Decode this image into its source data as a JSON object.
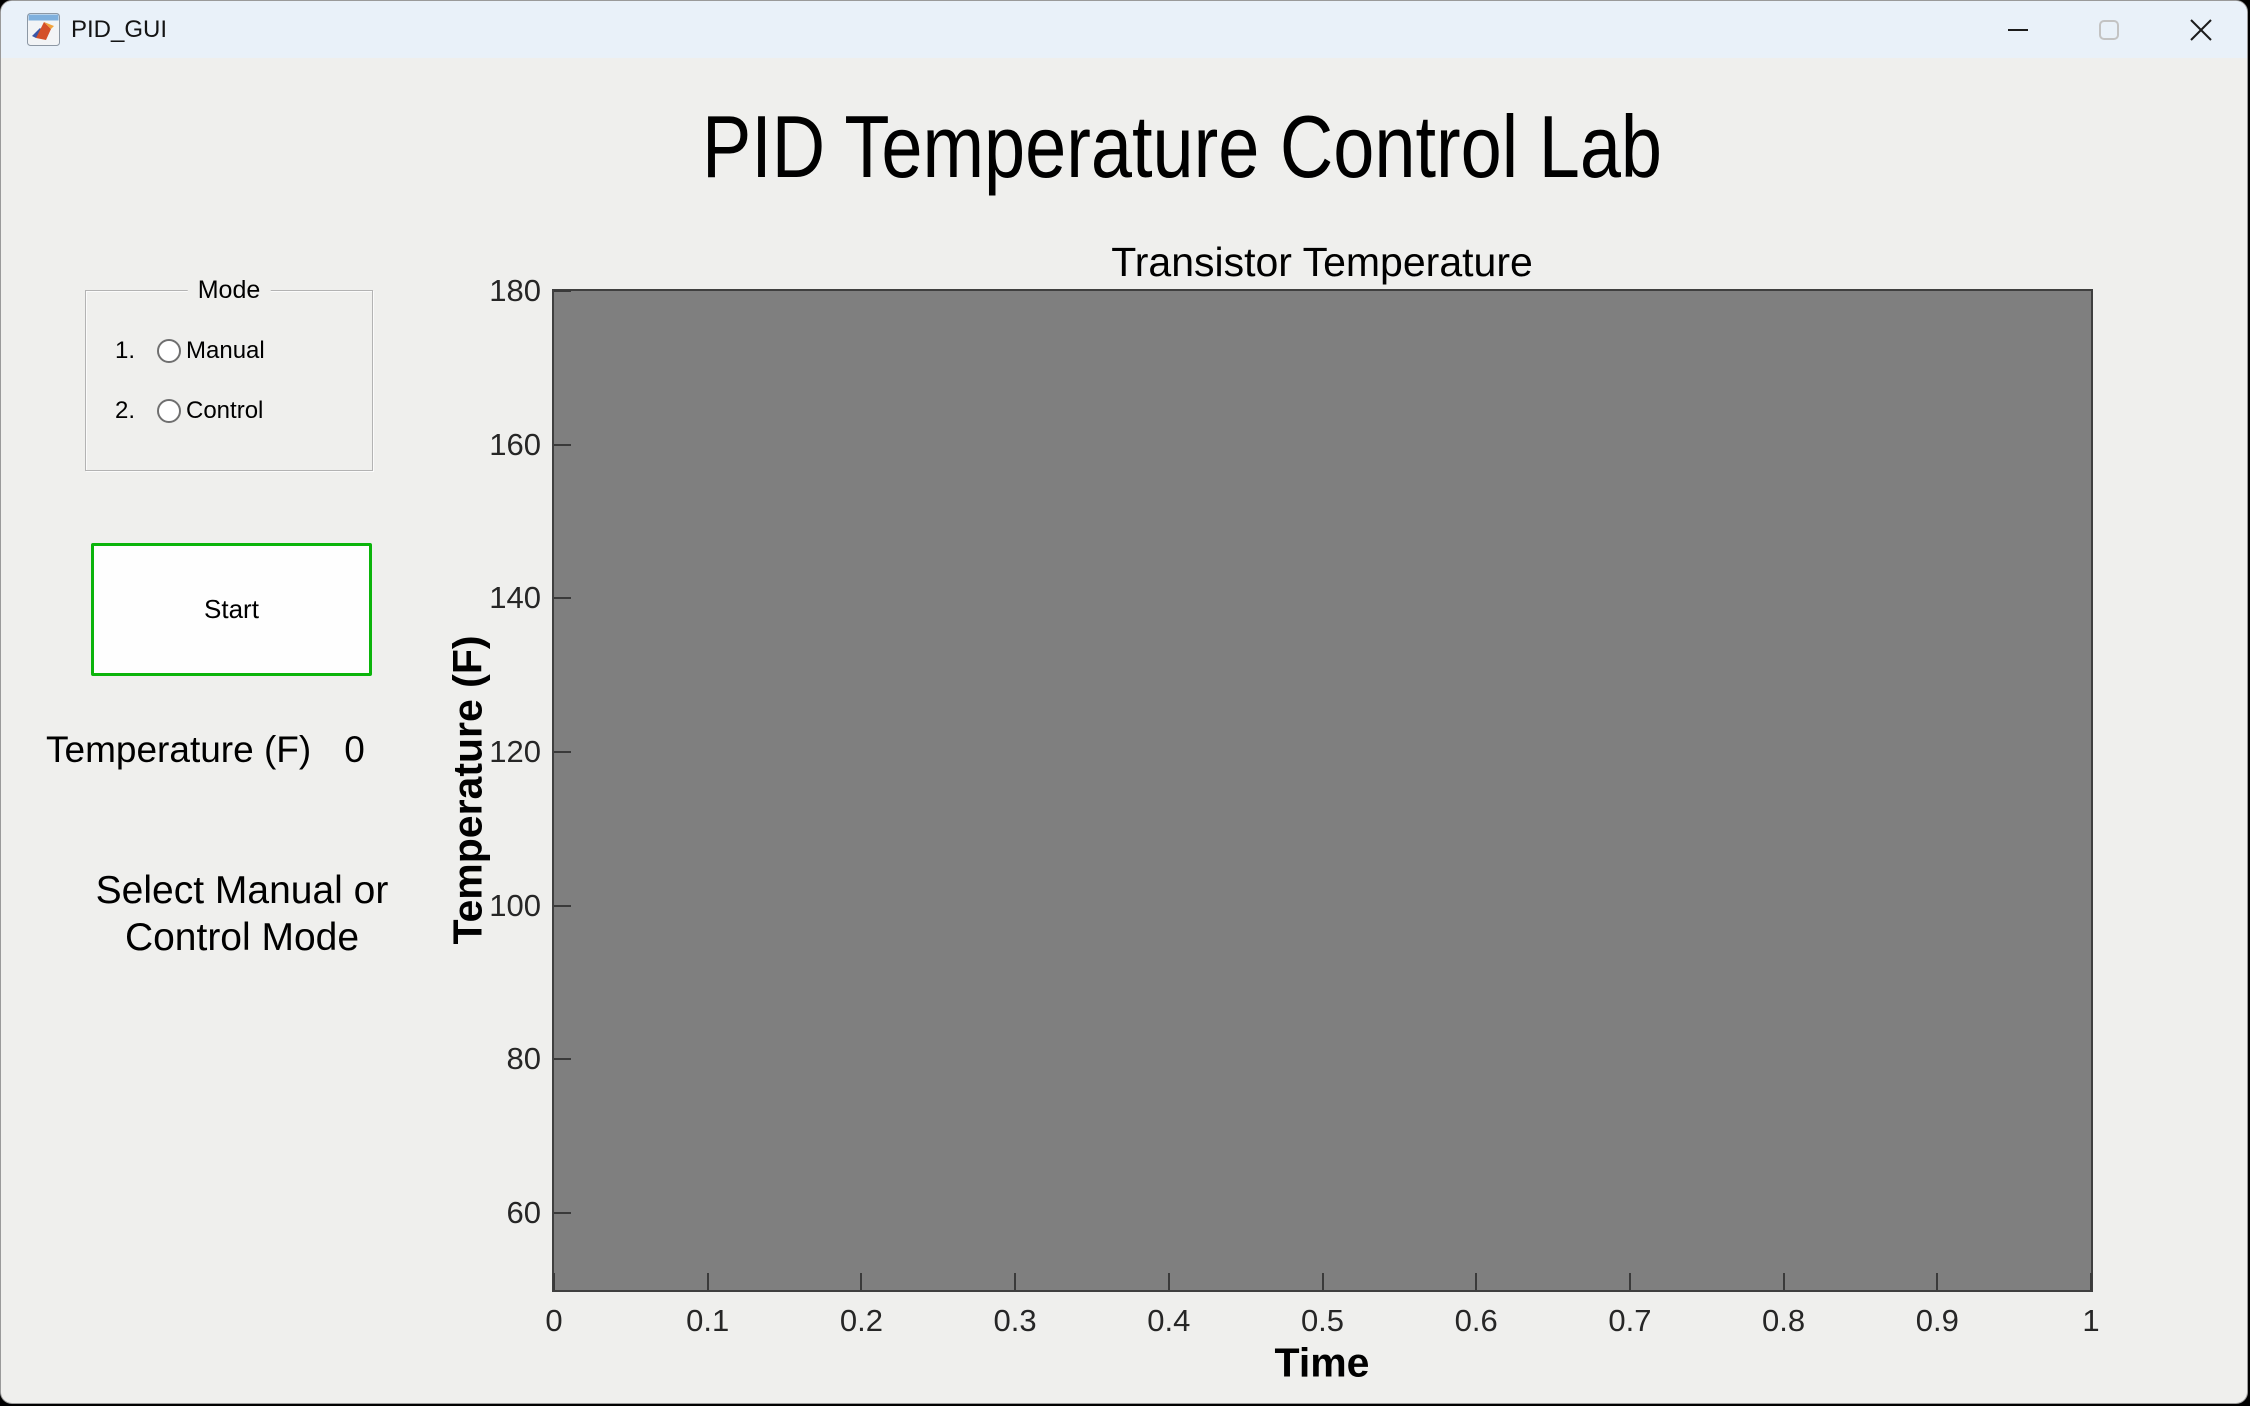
{
  "window": {
    "title": "PID_GUI",
    "controls": {
      "minimize": "minimize",
      "maximize": "maximize",
      "close": "close"
    },
    "titlebar_color": "#e9f1f9",
    "figure_background": "#efefed"
  },
  "header": {
    "title": "PID Temperature Control Lab"
  },
  "mode_panel": {
    "legend": "Mode",
    "options": [
      {
        "index": "1.",
        "label": "Manual",
        "selected": false
      },
      {
        "index": "2.",
        "label": "Control",
        "selected": false
      }
    ]
  },
  "start_button": {
    "label": "Start",
    "border_color": "#0bb40b"
  },
  "temperature_readout": {
    "label": "Temperature (F)",
    "value": "0"
  },
  "instruction": {
    "line1": "Select Manual or",
    "line2": "Control Mode"
  },
  "chart_data": {
    "type": "line",
    "title": "Transistor Temperature",
    "xlabel": "Time",
    "ylabel": "Temperature (F)",
    "xlim": [
      0,
      1
    ],
    "ylim": [
      50,
      180
    ],
    "xtick_labels": [
      "0",
      "0.1",
      "0.2",
      "0.3",
      "0.4",
      "0.5",
      "0.6",
      "0.7",
      "0.8",
      "0.9",
      "1"
    ],
    "ytick_labels": [
      "60",
      "80",
      "100",
      "120",
      "140",
      "160",
      "180"
    ],
    "series": [],
    "grid": false,
    "legend": null,
    "plot_background": "#7f7f7f",
    "axis_color": "#3a3a3a"
  }
}
